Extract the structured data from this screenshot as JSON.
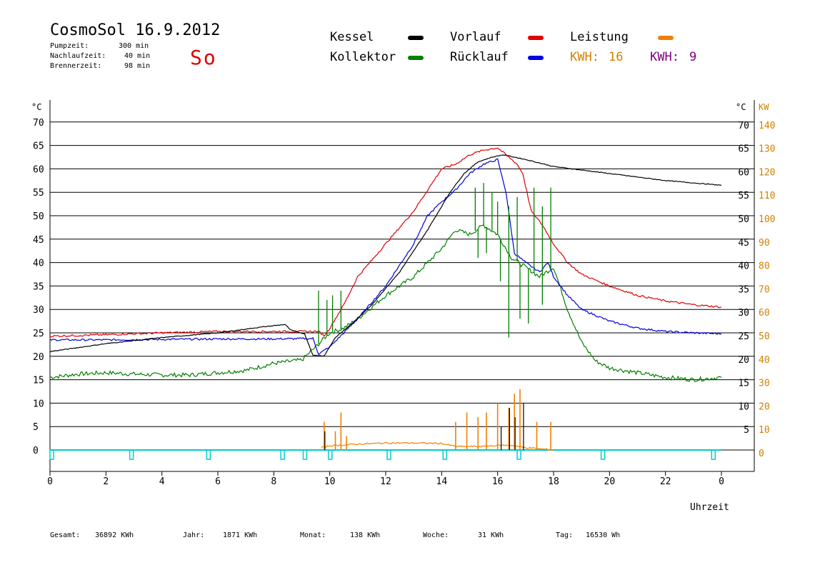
{
  "header": {
    "title": "CosmoSol 16.9.2012",
    "day": "So",
    "info": [
      {
        "label": "Pumpzeit:",
        "value": "300 min"
      },
      {
        "label": "Nachlaufzeit:",
        "value": "40 min"
      },
      {
        "label": "Brennerzeit:",
        "value": "98 min"
      }
    ]
  },
  "legend": {
    "items": [
      {
        "label": "Kessel",
        "color": "#000000"
      },
      {
        "label": "Vorlauf",
        "color": "#e00000"
      },
      {
        "label": "Leistung",
        "color": "#f08000"
      },
      {
        "label": "Kollektor",
        "color": "#008000"
      },
      {
        "label": "Rücklauf",
        "color": "#0000e0"
      }
    ],
    "kwh": [
      {
        "label": "KWH:",
        "value": "16",
        "color": "#d08000"
      },
      {
        "label": "KWH:",
        "value": "9",
        "color": "#800080"
      }
    ]
  },
  "footer": [
    {
      "label": "Gesamt:",
      "value": "36892 KWh"
    },
    {
      "label": "Jahr:",
      "value": "1871 KWh"
    },
    {
      "label": "Monat:",
      "value": "138 KWh"
    },
    {
      "label": "Woche:",
      "value": "31 KWh"
    },
    {
      "label": "Tag:",
      "value": "16530 Wh"
    }
  ],
  "colors": {
    "grid": "#000000",
    "kw_axis": "#d08000",
    "marker": "#00cccc"
  },
  "chart_data": {
    "type": "line",
    "xlabel": "Uhrzeit",
    "xlim": [
      0,
      24
    ],
    "x_ticks": [
      "0",
      "2",
      "4",
      "6",
      "8",
      "10",
      "12",
      "14",
      "16",
      "18",
      "20",
      "22",
      "0"
    ],
    "y_left_label": "°C",
    "y_left_ticks": [
      "70",
      "65",
      "60",
      "55",
      "50",
      "45",
      "40",
      "35",
      "30",
      "25",
      "20",
      "15",
      "10",
      "5",
      "0"
    ],
    "y_right_label": "°C",
    "y_right_ticks": [
      "70",
      "65",
      "60",
      "55",
      "50",
      "45",
      "40",
      "35",
      "30",
      "25",
      "20",
      "15",
      "10",
      "5"
    ],
    "y2_label": "KW",
    "y2_ticks": [
      "140",
      "130",
      "120",
      "110",
      "100",
      "90",
      "80",
      "70",
      "60",
      "50",
      "40",
      "30",
      "20",
      "10",
      "0"
    ],
    "ylim_temp": [
      0,
      70
    ],
    "ylim_kw": [
      0,
      140
    ],
    "series": [
      {
        "name": "Kessel",
        "color": "#000000",
        "axis": "temp",
        "points": [
          [
            0,
            21
          ],
          [
            2,
            22.7
          ],
          [
            4,
            24
          ],
          [
            6,
            25
          ],
          [
            7.5,
            26.2
          ],
          [
            8.4,
            26.8
          ],
          [
            8.6,
            25.6
          ],
          [
            9.1,
            24.8
          ],
          [
            9.4,
            20.2
          ],
          [
            9.8,
            20.1
          ],
          [
            10.2,
            24
          ],
          [
            10.8,
            27
          ],
          [
            11.5,
            31
          ],
          [
            12.5,
            38
          ],
          [
            13.5,
            47
          ],
          [
            14.3,
            55
          ],
          [
            14.8,
            59
          ],
          [
            15.3,
            61.5
          ],
          [
            15.8,
            62.5
          ],
          [
            16.2,
            63
          ],
          [
            17,
            62
          ],
          [
            18,
            60.5
          ],
          [
            20,
            59
          ],
          [
            22,
            57.5
          ],
          [
            24,
            56.5
          ]
        ]
      },
      {
        "name": "Vorlauf",
        "color": "#e00000",
        "axis": "temp",
        "points": [
          [
            0,
            24.3
          ],
          [
            2,
            24.6
          ],
          [
            4,
            25
          ],
          [
            6,
            25.3
          ],
          [
            8,
            25.3
          ],
          [
            9.6,
            25.3
          ],
          [
            9.8,
            24.4
          ],
          [
            10,
            26
          ],
          [
            10.5,
            31
          ],
          [
            11,
            37
          ],
          [
            12,
            44
          ],
          [
            13,
            51
          ],
          [
            13.5,
            55.5
          ],
          [
            14,
            60
          ],
          [
            14.5,
            61
          ],
          [
            15,
            63
          ],
          [
            15.5,
            64
          ],
          [
            16,
            64.5
          ],
          [
            16.4,
            62.5
          ],
          [
            16.7,
            61
          ],
          [
            16.9,
            59
          ],
          [
            17.2,
            51
          ],
          [
            17.6,
            48
          ],
          [
            18,
            44
          ],
          [
            18.5,
            40
          ],
          [
            19,
            37.5
          ],
          [
            20,
            35
          ],
          [
            21,
            33
          ],
          [
            22,
            31.8
          ],
          [
            23,
            31
          ],
          [
            24,
            30.5
          ]
        ]
      },
      {
        "name": "Rücklauf",
        "color": "#0000e0",
        "axis": "temp",
        "points": [
          [
            0,
            23.5
          ],
          [
            2,
            23.5
          ],
          [
            4,
            23.6
          ],
          [
            6,
            23.7
          ],
          [
            8,
            23.7
          ],
          [
            9.4,
            23.8
          ],
          [
            9.6,
            20.5
          ],
          [
            10,
            22
          ],
          [
            10.5,
            25
          ],
          [
            11,
            28
          ],
          [
            12,
            35
          ],
          [
            13,
            44
          ],
          [
            13.5,
            50
          ],
          [
            14,
            53
          ],
          [
            14.5,
            55.5
          ],
          [
            15,
            59
          ],
          [
            15.5,
            61
          ],
          [
            16,
            62
          ],
          [
            16.3,
            55
          ],
          [
            16.6,
            42
          ],
          [
            17,
            40
          ],
          [
            17.5,
            38
          ],
          [
            17.8,
            40
          ],
          [
            18,
            37
          ],
          [
            18.5,
            33
          ],
          [
            19,
            30
          ],
          [
            20,
            27.5
          ],
          [
            21,
            26
          ],
          [
            22,
            25.3
          ],
          [
            23,
            25
          ],
          [
            24,
            24.8
          ]
        ]
      },
      {
        "name": "Kollektor",
        "color": "#008000",
        "axis": "temp",
        "points": [
          [
            0,
            15.5
          ],
          [
            1,
            16.2
          ],
          [
            2,
            16.5
          ],
          [
            3,
            16.2
          ],
          [
            4,
            16
          ],
          [
            5,
            16
          ],
          [
            6,
            16.5
          ],
          [
            7,
            17
          ],
          [
            8,
            18.5
          ],
          [
            9,
            19.2
          ],
          [
            9.5,
            22
          ],
          [
            10,
            25
          ],
          [
            10.5,
            26
          ],
          [
            11,
            28
          ],
          [
            12,
            33
          ],
          [
            13,
            37
          ],
          [
            13.5,
            40
          ],
          [
            14,
            43
          ],
          [
            14.5,
            47
          ],
          [
            15,
            46
          ],
          [
            15.5,
            48
          ],
          [
            16,
            46
          ],
          [
            16.5,
            41
          ],
          [
            17,
            39
          ],
          [
            17.5,
            37
          ],
          [
            18,
            39
          ],
          [
            18.5,
            30
          ],
          [
            19,
            23
          ],
          [
            19.5,
            19
          ],
          [
            20,
            17.5
          ],
          [
            21,
            16.5
          ],
          [
            22,
            15.5
          ],
          [
            23,
            15
          ],
          [
            24,
            15.5
          ]
        ]
      },
      {
        "name": "Leistung",
        "color": "#f08000",
        "axis": "kw",
        "points": [
          [
            9.7,
            1
          ],
          [
            10,
            1.8
          ],
          [
            11,
            2.5
          ],
          [
            12,
            3
          ],
          [
            13,
            3
          ],
          [
            14,
            2.8
          ],
          [
            14.5,
            1.5
          ],
          [
            15.5,
            1.5
          ],
          [
            16,
            2
          ],
          [
            16.5,
            2
          ],
          [
            17,
            1
          ],
          [
            17.5,
            0.5
          ],
          [
            18,
            0
          ]
        ]
      }
    ],
    "spikes": {
      "Leistung": [
        [
          9.8,
          12
        ],
        [
          10.2,
          8
        ],
        [
          10.4,
          16
        ],
        [
          10.6,
          6
        ],
        [
          14.5,
          12
        ],
        [
          14.9,
          16
        ],
        [
          15.3,
          14
        ],
        [
          15.6,
          16
        ],
        [
          16,
          20
        ],
        [
          16.4,
          18
        ],
        [
          16.6,
          24
        ],
        [
          16.8,
          26
        ],
        [
          17.4,
          12
        ],
        [
          17.9,
          12
        ]
      ],
      "Kessel": [
        [
          9.8,
          8
        ],
        [
          16.1,
          10
        ],
        [
          16.4,
          18
        ],
        [
          16.6,
          14
        ],
        [
          16.9,
          20
        ]
      ],
      "Kollektor_temp": [
        [
          9.6,
          34
        ],
        [
          9.9,
          32
        ],
        [
          10.1,
          33
        ],
        [
          10.4,
          34
        ],
        [
          15.2,
          56
        ],
        [
          15.5,
          57
        ],
        [
          15.8,
          55
        ],
        [
          16,
          53
        ],
        [
          16.4,
          52
        ],
        [
          16.7,
          54
        ],
        [
          17.3,
          56
        ],
        [
          17.6,
          52
        ],
        [
          17.9,
          56
        ]
      ],
      "Kollektor_low": [
        [
          15.3,
          41
        ],
        [
          15.6,
          42
        ],
        [
          16.1,
          36
        ],
        [
          16.4,
          24
        ],
        [
          16.8,
          28
        ],
        [
          17.1,
          27
        ],
        [
          17.6,
          31
        ]
      ]
    }
  }
}
